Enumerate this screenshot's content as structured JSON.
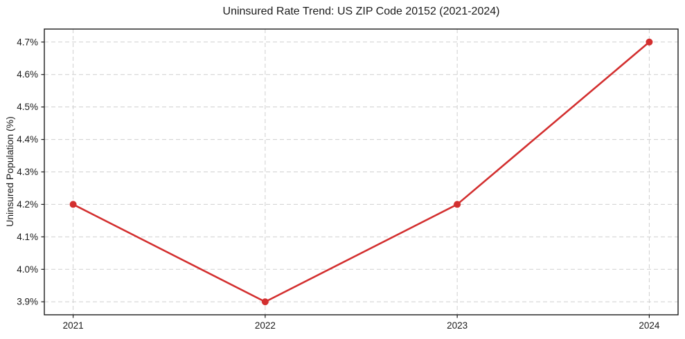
{
  "chart_data": {
    "type": "line",
    "title": "Uninsured Rate Trend: US ZIP Code 20152 (2021-2024)",
    "xlabel": "",
    "ylabel": "Uninsured Population (%)",
    "x": [
      2021,
      2022,
      2023,
      2024
    ],
    "values": [
      4.2,
      3.9,
      4.2,
      4.7
    ],
    "x_tick_labels": [
      "2021",
      "2022",
      "2023",
      "2024"
    ],
    "y_ticks": [
      3.9,
      4.0,
      4.1,
      4.2,
      4.3,
      4.4,
      4.5,
      4.6,
      4.7
    ],
    "y_tick_labels": [
      "3.9%",
      "4.0%",
      "4.1%",
      "4.2%",
      "4.3%",
      "4.4%",
      "4.5%",
      "4.6%",
      "4.7%"
    ],
    "xlim": [
      2020.85,
      2024.15
    ],
    "ylim": [
      3.86,
      4.74
    ],
    "grid": "dashed",
    "legend_position": "none",
    "line_color": "#d32f2f",
    "marker": "circle",
    "grid_color": "#cfcfcf",
    "frame_color": "#1a1a1a",
    "background_color": "#ffffff"
  }
}
